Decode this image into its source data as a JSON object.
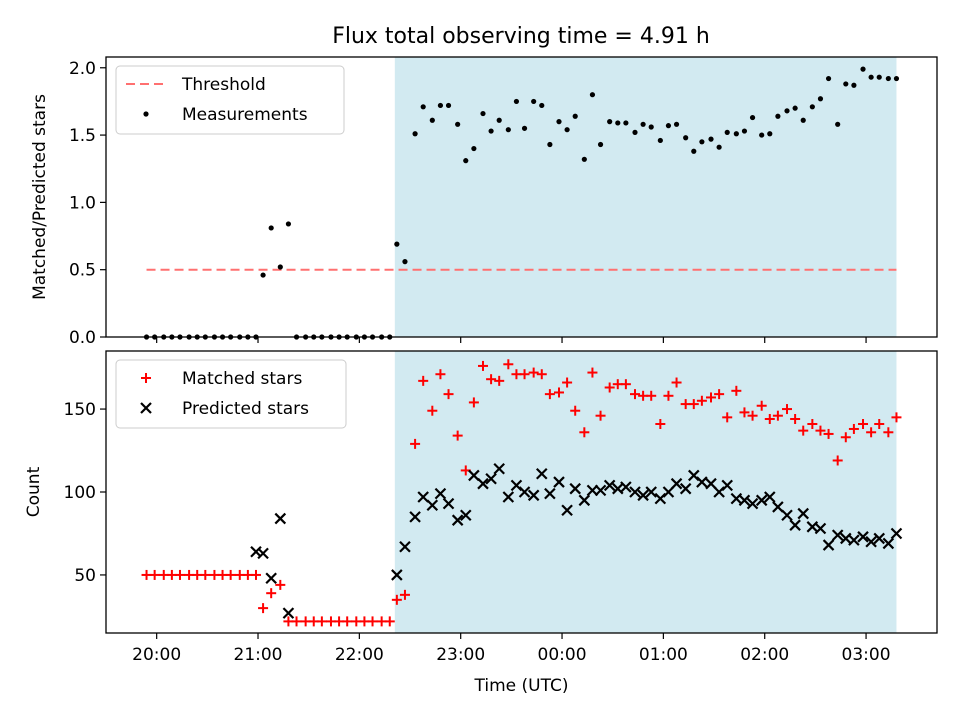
{
  "title": "Flux total observing time = 4.91 h",
  "colors": {
    "threshold": "#ff7070",
    "measurement": "#000000",
    "matched": "#ff0000",
    "predicted": "#000000",
    "shade": "#add8e6"
  },
  "chart_data": [
    {
      "type": "scatter",
      "ylabel": "Matched/Predicted stars",
      "ylim": [
        0,
        2.08
      ],
      "yticks": [
        0.0,
        0.5,
        1.0,
        1.5,
        2.0
      ],
      "ytick_labels": [
        "0.0",
        "0.5",
        "1.0",
        "1.5",
        "2.0"
      ],
      "legend": [
        "Threshold",
        "Measurements"
      ],
      "legend_loc": "upper left",
      "shaded_region": [
        22.35,
        27.3
      ],
      "threshold": {
        "value": 0.5,
        "x_range": [
          19.9,
          27.3
        ]
      },
      "series": [
        {
          "name": "Measurements",
          "x": [
            19.9,
            19.98,
            20.07,
            20.15,
            20.23,
            20.32,
            20.4,
            20.48,
            20.57,
            20.65,
            20.73,
            20.82,
            20.9,
            20.98,
            21.05,
            21.13,
            21.22,
            21.3,
            21.38,
            21.47,
            21.55,
            21.63,
            21.72,
            21.8,
            21.88,
            21.97,
            22.05,
            22.13,
            22.22,
            22.3,
            22.37,
            22.45,
            22.55,
            22.63,
            22.72,
            22.8,
            22.88,
            22.97,
            23.05,
            23.13,
            23.22,
            23.3,
            23.38,
            23.47,
            23.55,
            23.63,
            23.72,
            23.8,
            23.88,
            23.97,
            24.05,
            24.13,
            24.22,
            24.3,
            24.38,
            24.47,
            24.55,
            24.63,
            24.72,
            24.8,
            24.88,
            24.97,
            25.05,
            25.13,
            25.22,
            25.3,
            25.38,
            25.47,
            25.55,
            25.63,
            25.72,
            25.8,
            25.88,
            25.97,
            26.05,
            26.13,
            26.22,
            26.3,
            26.38,
            26.47,
            26.55,
            26.63,
            26.72,
            26.8,
            26.88,
            26.97,
            27.05,
            27.13,
            27.22,
            27.3
          ],
          "y": [
            0,
            0,
            0,
            0,
            0,
            0,
            0,
            0,
            0,
            0,
            0,
            0,
            0,
            0,
            0.46,
            0.81,
            0.52,
            0.84,
            0,
            0,
            0,
            0,
            0,
            0,
            0,
            0,
            0,
            0,
            0,
            0,
            0.69,
            0.56,
            1.51,
            1.71,
            1.61,
            1.72,
            1.72,
            1.58,
            1.31,
            1.4,
            1.66,
            1.53,
            1.61,
            1.54,
            1.75,
            1.55,
            1.75,
            1.72,
            1.43,
            1.6,
            1.54,
            1.64,
            1.32,
            1.8,
            1.43,
            1.6,
            1.59,
            1.59,
            1.52,
            1.58,
            1.56,
            1.46,
            1.57,
            1.58,
            1.48,
            1.38,
            1.45,
            1.47,
            1.41,
            1.52,
            1.51,
            1.53,
            1.63,
            1.5,
            1.51,
            1.64,
            1.68,
            1.7,
            1.61,
            1.71,
            1.77,
            1.92,
            1.58,
            1.88,
            1.87,
            1.99,
            1.93,
            1.93,
            1.92,
            1.92
          ]
        }
      ]
    },
    {
      "type": "scatter",
      "xlabel": "Time (UTC)",
      "ylabel": "Count",
      "ylim": [
        15,
        185
      ],
      "yticks": [
        50,
        100,
        150
      ],
      "ytick_labels": [
        "50",
        "100",
        "150"
      ],
      "xlim": [
        19.5,
        27.7
      ],
      "xticks": [
        20,
        21,
        22,
        23,
        24,
        25,
        26,
        27
      ],
      "xtick_labels": [
        "20:00",
        "21:00",
        "22:00",
        "23:00",
        "00:00",
        "01:00",
        "02:00",
        "03:00"
      ],
      "legend": [
        "Matched stars",
        "Predicted stars"
      ],
      "legend_loc": "upper left",
      "shaded_region": [
        22.35,
        27.3
      ],
      "series": [
        {
          "name": "Matched stars",
          "x": [
            19.9,
            19.98,
            20.07,
            20.15,
            20.23,
            20.32,
            20.4,
            20.48,
            20.57,
            20.65,
            20.73,
            20.82,
            20.9,
            20.98,
            21.05,
            21.13,
            21.22,
            21.3,
            21.38,
            21.47,
            21.55,
            21.63,
            21.72,
            21.8,
            21.88,
            21.97,
            22.05,
            22.13,
            22.22,
            22.3,
            22.37,
            22.45,
            22.55,
            22.63,
            22.72,
            22.8,
            22.88,
            22.97,
            23.05,
            23.13,
            23.22,
            23.3,
            23.38,
            23.47,
            23.55,
            23.63,
            23.72,
            23.8,
            23.88,
            23.97,
            24.05,
            24.13,
            24.22,
            24.3,
            24.38,
            24.47,
            24.55,
            24.63,
            24.72,
            24.8,
            24.88,
            24.97,
            25.05,
            25.13,
            25.22,
            25.3,
            25.38,
            25.47,
            25.55,
            25.63,
            25.72,
            25.8,
            25.88,
            25.97,
            26.05,
            26.13,
            26.22,
            26.3,
            26.38,
            26.47,
            26.55,
            26.63,
            26.72,
            26.8,
            26.88,
            26.97,
            27.05,
            27.13,
            27.22,
            27.3
          ],
          "y": [
            50,
            50,
            50,
            50,
            50,
            50,
            50,
            50,
            50,
            50,
            50,
            50,
            50,
            50,
            30,
            39,
            44,
            22,
            22,
            22,
            22,
            22,
            22,
            22,
            22,
            22,
            22,
            22,
            22,
            22,
            35,
            38,
            129,
            167,
            149,
            171,
            159,
            134,
            113,
            154,
            176,
            168,
            167,
            177,
            171,
            171,
            172,
            171,
            159,
            160,
            166,
            149,
            136,
            172,
            146,
            163,
            165,
            165,
            159,
            158,
            158,
            141,
            158,
            166,
            153,
            153,
            155,
            157,
            159,
            145,
            161,
            148,
            146,
            152,
            144,
            146,
            150,
            144,
            137,
            141,
            137,
            135,
            119,
            133,
            138,
            141,
            136,
            141,
            136,
            145
          ]
        },
        {
          "name": "Predicted stars",
          "x": [
            20.98,
            21.05,
            21.13,
            21.22,
            21.3,
            22.37,
            22.45,
            22.55,
            22.63,
            22.72,
            22.8,
            22.88,
            22.97,
            23.05,
            23.13,
            23.22,
            23.3,
            23.38,
            23.47,
            23.55,
            23.63,
            23.72,
            23.8,
            23.88,
            23.97,
            24.05,
            24.13,
            24.22,
            24.3,
            24.38,
            24.47,
            24.55,
            24.63,
            24.72,
            24.8,
            24.88,
            24.97,
            25.05,
            25.13,
            25.22,
            25.3,
            25.38,
            25.47,
            25.55,
            25.63,
            25.72,
            25.8,
            25.88,
            25.97,
            26.05,
            26.13,
            26.22,
            26.3,
            26.38,
            26.47,
            26.55,
            26.63,
            26.72,
            26.8,
            26.88,
            26.97,
            27.05,
            27.13,
            27.22,
            27.3
          ],
          "y": [
            64,
            63,
            48,
            84,
            27,
            50,
            67,
            85,
            97,
            92,
            99,
            93,
            83,
            86,
            110,
            105,
            108,
            114,
            97,
            104,
            100,
            98,
            111,
            99,
            106,
            89,
            102,
            95,
            101,
            101,
            104,
            102,
            103,
            100,
            98,
            100,
            96,
            100,
            105,
            102,
            110,
            106,
            105,
            100,
            104,
            96,
            95,
            93,
            95,
            97,
            91,
            86,
            80,
            87,
            79,
            78,
            68,
            74,
            72,
            71,
            73,
            70,
            72,
            69,
            75
          ]
        }
      ]
    }
  ]
}
